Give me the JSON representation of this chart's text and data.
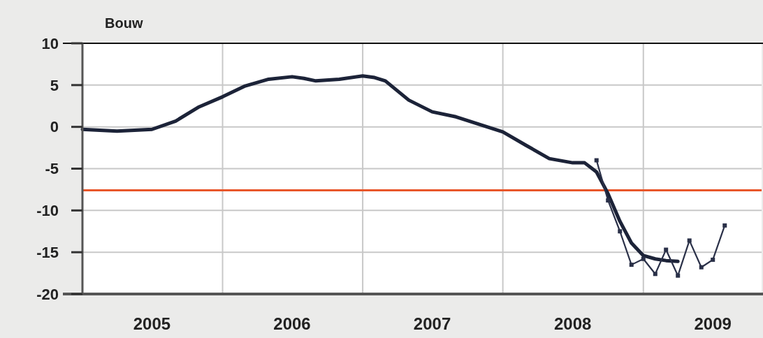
{
  "chart_data": {
    "type": "line",
    "title": "Bouw",
    "xlim": [
      "2005-01-01",
      "2009-11-05"
    ],
    "xticks": [
      {
        "value": "2005-07-01",
        "label": "2005"
      },
      {
        "value": "2006-01-01",
        "label": null
      },
      {
        "value": "2006-07-01",
        "label": "2006"
      },
      {
        "value": "2007-01-01",
        "label": null
      },
      {
        "value": "2007-07-01",
        "label": "2007"
      },
      {
        "value": "2008-01-01",
        "label": null
      },
      {
        "value": "2008-07-01",
        "label": "2008"
      },
      {
        "value": "2009-01-01",
        "label": null
      },
      {
        "value": "2009-07-01",
        "label": "2009"
      }
    ],
    "ylim": [
      -20,
      10
    ],
    "yticks": [
      -20,
      -15,
      -10,
      -5,
      0,
      5,
      10
    ],
    "grid": true,
    "ref_lines": [
      {
        "axis": "y",
        "value": -7.6,
        "color": "#e8562a"
      }
    ],
    "series": [
      {
        "color": "#1c2338",
        "marker": "none",
        "x": [
          "2005-01",
          "2005-04",
          "2005-07",
          "2005-09",
          "2005-11",
          "2006-01",
          "2006-03",
          "2006-05",
          "2006-07",
          "2006-08",
          "2006-09",
          "2006-11",
          "2007-01",
          "2007-02",
          "2007-03",
          "2007-05",
          "2007-07",
          "2007-09",
          "2007-11",
          "2008-01",
          "2008-03",
          "2008-05",
          "2008-07",
          "2008-08",
          "2008-09",
          "2008-10",
          "2008-11",
          "2008-12",
          "2009-01",
          "2009-02",
          "2009-03",
          "2009-04"
        ],
        "values": [
          -0.3,
          -0.5,
          -0.3,
          0.7,
          2.4,
          3.6,
          4.9,
          5.7,
          6.0,
          5.8,
          5.5,
          5.7,
          6.1,
          5.9,
          5.5,
          3.2,
          1.8,
          1.2,
          0.3,
          -0.6,
          -2.2,
          -3.8,
          -4.3,
          -4.3,
          -5.4,
          -8.0,
          -11.3,
          -13.9,
          -15.4,
          -15.8,
          -16.0,
          -16.1
        ]
      },
      {
        "color": "#2a3048",
        "marker": "square",
        "x": [
          "2008-09",
          "2008-10",
          "2008-11",
          "2008-12",
          "2009-01",
          "2009-02",
          "2009-03",
          "2009-04",
          "2009-05",
          "2009-06",
          "2009-07",
          "2009-08"
        ],
        "values": [
          -4.0,
          -8.8,
          -12.5,
          -16.5,
          -15.8,
          -17.6,
          -14.7,
          -17.8,
          -13.6,
          -16.8,
          -15.9,
          -11.8
        ]
      }
    ]
  }
}
